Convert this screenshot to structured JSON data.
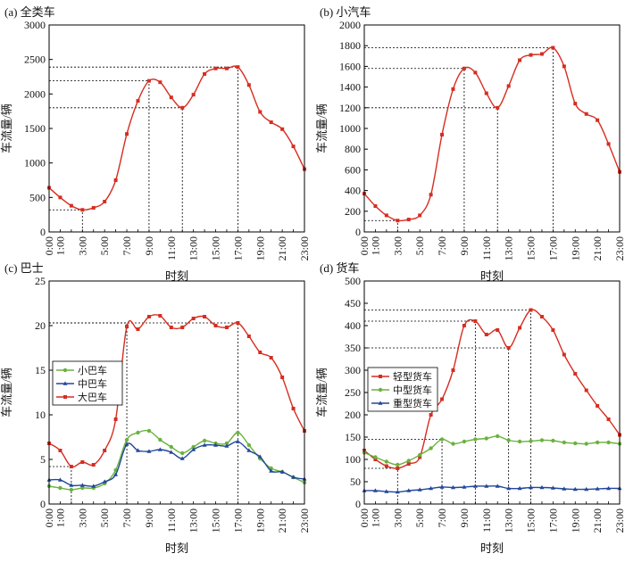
{
  "figure": {
    "y_axis_label": "车流量/辆",
    "x_axis_label": "时刻",
    "x_tick_labels": [
      "0:00",
      "1:00",
      "3:00",
      "5:00",
      "7:00",
      "9:00",
      "11:00",
      "13:00",
      "15:00",
      "17:00",
      "19:00",
      "21:00",
      "23:00"
    ]
  },
  "chart_data": [
    {
      "type": "line",
      "title": "(a) 全类车",
      "xlabel": "时刻",
      "ylabel": "车流量/辆",
      "xlim": [
        0,
        23
      ],
      "ylim": [
        0,
        3000
      ],
      "yticks": [
        0,
        500,
        1000,
        1500,
        2000,
        2500,
        3000
      ],
      "x": [
        0,
        1,
        2,
        3,
        4,
        5,
        6,
        7,
        8,
        9,
        10,
        11,
        12,
        13,
        14,
        15,
        16,
        17,
        18,
        19,
        20,
        21,
        22,
        23
      ],
      "series": [
        {
          "color": "#d62d20",
          "marker": "square",
          "values": [
            640,
            500,
            380,
            320,
            350,
            440,
            750,
            1420,
            1900,
            2190,
            2170,
            1950,
            1800,
            1990,
            2290,
            2370,
            2370,
            2390,
            2130,
            1740,
            1590,
            1490,
            1240,
            910
          ]
        }
      ],
      "reference_lines": [
        {
          "x": 3,
          "y": 320
        },
        {
          "x": 9,
          "y": 2190
        },
        {
          "x": 12,
          "y": 1800
        },
        {
          "x": 17,
          "y": 2390
        }
      ]
    },
    {
      "type": "line",
      "title": "(b) 小汽车",
      "xlabel": "时刻",
      "ylabel": "车流量/辆",
      "xlim": [
        0,
        23
      ],
      "ylim": [
        0,
        2000
      ],
      "yticks": [
        0,
        200,
        400,
        600,
        800,
        1000,
        1200,
        1400,
        1600,
        1800,
        2000
      ],
      "x": [
        0,
        1,
        2,
        3,
        4,
        5,
        6,
        7,
        8,
        9,
        10,
        11,
        12,
        13,
        14,
        15,
        16,
        17,
        18,
        19,
        20,
        21,
        22,
        23
      ],
      "series": [
        {
          "color": "#d62d20",
          "marker": "square",
          "values": [
            370,
            250,
            160,
            110,
            120,
            160,
            360,
            940,
            1380,
            1580,
            1540,
            1340,
            1200,
            1410,
            1660,
            1710,
            1720,
            1780,
            1600,
            1240,
            1140,
            1080,
            850,
            580
          ]
        }
      ],
      "reference_lines": [
        {
          "x": 3,
          "y": 110
        },
        {
          "x": 9,
          "y": 1580
        },
        {
          "x": 12,
          "y": 1200
        },
        {
          "x": 17,
          "y": 1780
        }
      ]
    },
    {
      "type": "line",
      "title": "(c) 巴士",
      "xlabel": "时刻",
      "ylabel": "车流量/辆",
      "xlim": [
        0,
        23
      ],
      "ylim": [
        0,
        25
      ],
      "yticks": [
        0,
        5,
        10,
        15,
        20,
        25
      ],
      "legend_position": "left",
      "x": [
        0,
        1,
        2,
        3,
        4,
        5,
        6,
        7,
        8,
        9,
        10,
        11,
        12,
        13,
        14,
        15,
        16,
        17,
        18,
        19,
        20,
        21,
        22,
        23
      ],
      "series": [
        {
          "name": "小巴车",
          "color": "#6ab23e",
          "marker": "circle",
          "values": [
            2.0,
            1.8,
            1.6,
            1.8,
            1.8,
            2.3,
            3.8,
            7.2,
            8.0,
            8.2,
            7.2,
            6.4,
            5.7,
            6.4,
            7.1,
            6.8,
            6.8,
            8.0,
            6.6,
            5.1,
            4.0,
            3.6,
            3.0,
            2.4
          ]
        },
        {
          "name": "中巴车",
          "color": "#23479a",
          "marker": "triangle",
          "values": [
            2.7,
            2.7,
            2.1,
            2.1,
            2.0,
            2.5,
            3.3,
            6.7,
            6.0,
            5.9,
            6.1,
            5.8,
            5.1,
            6.1,
            6.6,
            6.6,
            6.5,
            7.0,
            6.0,
            5.3,
            3.7,
            3.6,
            3.0,
            2.8
          ]
        },
        {
          "name": "大巴车",
          "color": "#d62d20",
          "marker": "square",
          "values": [
            6.8,
            6.0,
            4.2,
            4.7,
            4.4,
            6.0,
            9.5,
            19.9,
            19.6,
            21.0,
            21.1,
            19.8,
            19.8,
            20.8,
            21.0,
            20.0,
            19.8,
            20.3,
            18.8,
            17.0,
            16.4,
            14.2,
            10.7,
            8.2
          ]
        }
      ],
      "reference_lines": [
        {
          "x": 2,
          "y": 4.2
        },
        {
          "x": 7,
          "y": 20.3
        },
        {
          "x": 17,
          "y": 20.3
        }
      ]
    },
    {
      "type": "line",
      "title": "(d) 货车",
      "xlabel": "时刻",
      "ylabel": "车流量/辆",
      "xlim": [
        0,
        23
      ],
      "ylim": [
        0,
        500
      ],
      "yticks": [
        0,
        50,
        100,
        150,
        200,
        250,
        300,
        350,
        400,
        450,
        500
      ],
      "legend_position": "left",
      "x": [
        0,
        1,
        2,
        3,
        4,
        5,
        6,
        7,
        8,
        9,
        10,
        11,
        12,
        13,
        14,
        15,
        16,
        17,
        18,
        19,
        20,
        21,
        22,
        23
      ],
      "series": [
        {
          "name": "轻型货车",
          "color": "#d62d20",
          "marker": "square",
          "values": [
            120,
            100,
            85,
            80,
            90,
            105,
            200,
            235,
            300,
            400,
            410,
            380,
            390,
            350,
            395,
            435,
            420,
            390,
            335,
            292,
            255,
            220,
            190,
            155
          ]
        },
        {
          "name": "中型货车",
          "color": "#6ab23e",
          "marker": "circle",
          "values": [
            115,
            105,
            95,
            88,
            97,
            110,
            125,
            145,
            135,
            140,
            145,
            147,
            152,
            143,
            140,
            141,
            143,
            142,
            138,
            136,
            135,
            138,
            138,
            135
          ]
        },
        {
          "name": "重型货车",
          "color": "#23479a",
          "marker": "triangle",
          "values": [
            30,
            30,
            28,
            27,
            30,
            32,
            35,
            38,
            37,
            38,
            40,
            40,
            40,
            35,
            35,
            37,
            37,
            36,
            34,
            33,
            33,
            34,
            35,
            35
          ]
        }
      ],
      "reference_lines": [
        {
          "x": 3,
          "y": 80
        },
        {
          "x": 7,
          "y": 145
        },
        {
          "x": 10,
          "y": 410
        },
        {
          "x": 13,
          "y": 350
        },
        {
          "x": 15,
          "y": 435
        }
      ]
    }
  ]
}
